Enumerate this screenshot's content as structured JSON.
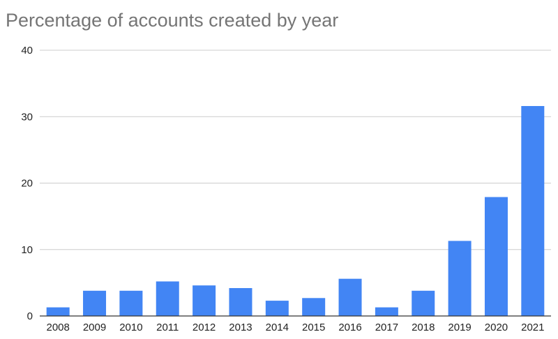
{
  "chart_data": {
    "type": "bar",
    "title": "Percentage of accounts created by year",
    "xlabel": "",
    "ylabel": "",
    "categories": [
      "2008",
      "2009",
      "2010",
      "2011",
      "2012",
      "2013",
      "2014",
      "2015",
      "2016",
      "2017",
      "2018",
      "2019",
      "2020",
      "2021"
    ],
    "series": [
      {
        "values": [
          1.3,
          3.8,
          3.8,
          5.2,
          4.6,
          4.2,
          2.3,
          2.7,
          5.6,
          1.3,
          3.8,
          11.3,
          17.9,
          31.6
        ]
      }
    ],
    "ylim": [
      0,
      40
    ],
    "yticks": [
      0,
      10,
      20,
      30,
      40
    ],
    "grid": true,
    "legend": "none",
    "colors": {
      "bar": "#4285f4",
      "grid": "#cccccc",
      "baseline": "#333333",
      "title": "#757575"
    }
  }
}
